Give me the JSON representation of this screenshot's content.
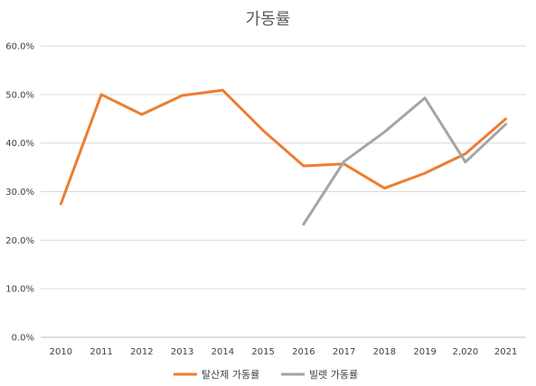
{
  "chart_data": {
    "type": "line",
    "title": "가동률",
    "categories": [
      "2010",
      "2011",
      "2012",
      "2013",
      "2014",
      "2015",
      "2016",
      "2017",
      "2018",
      "2019",
      "2,020",
      "2021"
    ],
    "y_ticks": [
      "0.0%",
      "10.0%",
      "20.0%",
      "30.0%",
      "40.0%",
      "50.0%",
      "60.0%"
    ],
    "ylim": [
      0,
      60
    ],
    "grid": true,
    "legend_position": "bottom",
    "series": [
      {
        "name": "탈산제 가동률",
        "color": "#ED7D31",
        "values": [
          27.5,
          50.0,
          45.9,
          49.8,
          50.9,
          42.6,
          35.3,
          35.7,
          30.7,
          33.8,
          37.8,
          45.0
        ]
      },
      {
        "name": "빌렛 가동률",
        "color": "#A5A5A5",
        "values": [
          null,
          null,
          null,
          null,
          null,
          null,
          23.3,
          36.2,
          42.3,
          49.3,
          36.1,
          43.9
        ]
      }
    ]
  }
}
